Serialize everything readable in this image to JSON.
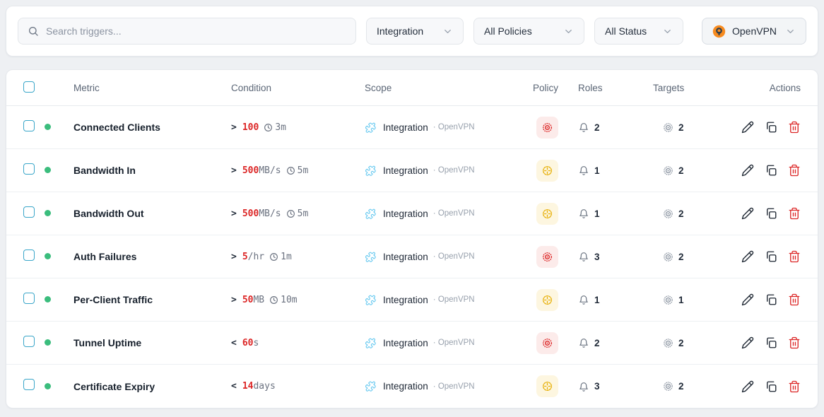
{
  "toolbar": {
    "search": {
      "placeholder": "Search triggers...",
      "icon": "search-icon"
    },
    "filters": [
      {
        "label": "Integration",
        "icon": "chevron-down-icon"
      },
      {
        "label": "All Policies",
        "icon": "chevron-down-icon"
      },
      {
        "label": "All Status",
        "icon": "chevron-down-icon"
      }
    ],
    "integration_filter": {
      "label": "OpenVPN",
      "logo_icon": "openvpn-logo-icon",
      "icon": "chevron-down-icon"
    }
  },
  "table": {
    "columns": {
      "metric": "Metric",
      "condition": "Condition",
      "scope": "Scope",
      "policy": "Policy",
      "roles": "Roles",
      "targets": "Targets",
      "actions": "Actions"
    },
    "scope_separator": "·",
    "rows": [
      {
        "status": "active",
        "metric": "Connected Clients",
        "condition": {
          "operator": ">",
          "value": "100",
          "unit": "",
          "window": "3m"
        },
        "scope": {
          "integration": "Integration",
          "channel": "OpenVPN"
        },
        "policy": "critical",
        "roles": "2",
        "targets": "2"
      },
      {
        "status": "active",
        "metric": "Bandwidth In",
        "condition": {
          "operator": ">",
          "value": "500",
          "unit": "MB/s",
          "window": "5m"
        },
        "scope": {
          "integration": "Integration",
          "channel": "OpenVPN"
        },
        "policy": "warning",
        "roles": "1",
        "targets": "2"
      },
      {
        "status": "active",
        "metric": "Bandwidth Out",
        "condition": {
          "operator": ">",
          "value": "500",
          "unit": "MB/s",
          "window": "5m"
        },
        "scope": {
          "integration": "Integration",
          "channel": "OpenVPN"
        },
        "policy": "warning",
        "roles": "1",
        "targets": "2"
      },
      {
        "status": "active",
        "metric": "Auth Failures",
        "condition": {
          "operator": ">",
          "value": "5",
          "unit": "/hr",
          "window": "1m"
        },
        "scope": {
          "integration": "Integration",
          "channel": "OpenVPN"
        },
        "policy": "critical",
        "roles": "3",
        "targets": "2"
      },
      {
        "status": "active",
        "metric": "Per-Client Traffic",
        "condition": {
          "operator": ">",
          "value": "50",
          "unit": "MB",
          "window": "10m"
        },
        "scope": {
          "integration": "Integration",
          "channel": "OpenVPN"
        },
        "policy": "warning",
        "roles": "1",
        "targets": "1"
      },
      {
        "status": "active",
        "metric": "Tunnel Uptime",
        "condition": {
          "operator": "<",
          "value": "60",
          "unit": "s",
          "window": ""
        },
        "scope": {
          "integration": "Integration",
          "channel": "OpenVPN"
        },
        "policy": "critical",
        "roles": "2",
        "targets": "2"
      },
      {
        "status": "active",
        "metric": "Certificate Expiry",
        "condition": {
          "operator": "<",
          "value": "14",
          "unit": "days",
          "window": ""
        },
        "scope": {
          "integration": "Integration",
          "channel": "OpenVPN"
        },
        "policy": "warning",
        "roles": "3",
        "targets": "2"
      }
    ],
    "row_icons": {
      "window": "clock-icon",
      "scope": "puzzle-icon",
      "policy_critical": "bullseye-icon",
      "policy_warning": "crosshair-circle-icon",
      "roles": "bell-icon",
      "targets": "target-icon",
      "actions": [
        "edit-pencil-icon",
        "duplicate-copy-icon",
        "delete-trash-icon"
      ]
    }
  },
  "colors": {
    "checkbox_accent": "#3aa6c9",
    "status_active": "#3bbd7d",
    "condition_value": "#dc2626",
    "policy_critical": "#dc2626",
    "policy_critical_bg": "#fcebea",
    "policy_warning": "#e7b008",
    "policy_warning_bg": "#fdf6e0",
    "scope_icon": "#67c9f0",
    "danger": "#dc2626",
    "openvpn_orange": "#f78b1f"
  }
}
